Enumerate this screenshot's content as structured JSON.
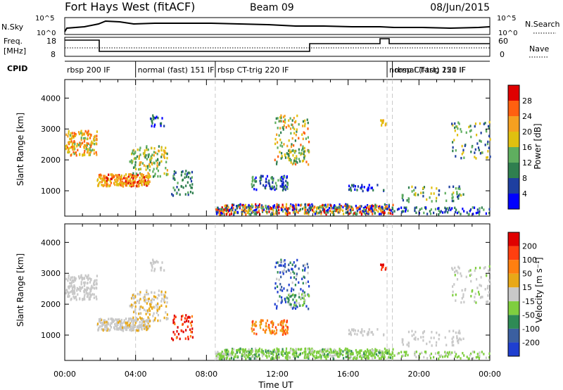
{
  "header": {
    "radar_title": "Fort Hays West (fitACF)",
    "beam": "Beam 09",
    "date": "08/Jun/2015"
  },
  "top_panels": {
    "nsky_label": "N.Sky",
    "nsearch_label": "N.Search",
    "left_scale_top": "10^5",
    "left_scale_bottom": "10^0",
    "right_scale_top": "10^5",
    "right_scale_bottom": "10^0",
    "freq_label_line1": "Freq.",
    "freq_label_line2": "[MHz]",
    "freq_ticks": [
      "18",
      "8"
    ],
    "nave_label": "Nave",
    "nave_ticks": [
      "60",
      "0"
    ],
    "cpid_label": "CPID"
  },
  "cpid_modes": [
    {
      "label": "rbsp 200 IF",
      "start_hour": 0.0
    },
    {
      "label": "normal (fast) 151 IF",
      "start_hour": 4.0
    },
    {
      "label": "rbsp CT-trig 220 IF",
      "start_hour": 8.5
    },
    {
      "label": "normal (fast) 151 IF",
      "start_hour": 18.2
    },
    {
      "label": "rbsp CT-trig 220 IF",
      "start_hour": 18.5
    }
  ],
  "colors": {
    "power": [
      "#0000ff",
      "#1e3fa0",
      "#2f7f4f",
      "#5fae5f",
      "#e0c010",
      "#f5a020",
      "#ff6010",
      "#e00000"
    ],
    "velocity": [
      "#1f3fd0",
      "#3b5fa0",
      "#2e8a55",
      "#7fce3f",
      "#c8c8c8",
      "#e8a818",
      "#ff7f10",
      "#ff3f10",
      "#e00000"
    ],
    "ground_scatter": "#c0c0c0",
    "dash": "#c8c8c8"
  },
  "chart_data": [
    {
      "type": "heatmap",
      "name": "power",
      "ylabel": "Slant Range [km]",
      "ylim": [
        180,
        4600
      ],
      "xlim": [
        0,
        24
      ],
      "yticks": [
        "1000",
        "2000",
        "3000",
        "4000"
      ],
      "colorbar_label": "Power [dB]",
      "colorbar_ticks": [
        "4",
        "8",
        "12",
        "16",
        "20",
        "24",
        "28"
      ]
    },
    {
      "type": "heatmap",
      "name": "velocity",
      "ylabel": "Slant Range [km]",
      "ylim": [
        180,
        4600
      ],
      "xlim": [
        0,
        24
      ],
      "yticks": [
        "1000",
        "2000",
        "3000",
        "4000"
      ],
      "xticks": [
        "00:00",
        "04:00",
        "08:00",
        "12:00",
        "16:00",
        "20:00",
        "00:00"
      ],
      "xlabel": "Time UT",
      "colorbar_label": "Velocity [m s⁻¹]",
      "colorbar_ticks": [
        "200",
        "100",
        "50",
        "15",
        "-15",
        "-50",
        "-100",
        "-200"
      ]
    }
  ]
}
